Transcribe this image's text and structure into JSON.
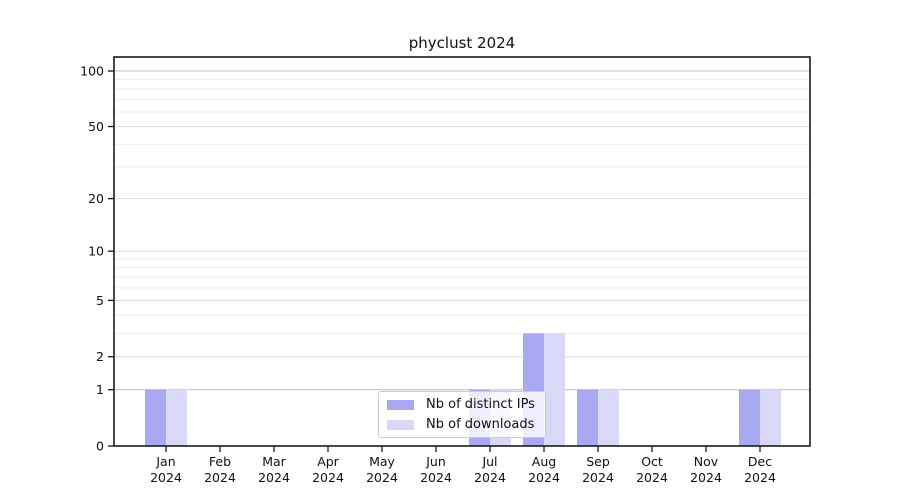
{
  "chart_data": {
    "type": "bar",
    "title": "phyclust 2024",
    "categories": [
      "Jan",
      "Feb",
      "Mar",
      "Apr",
      "May",
      "Jun",
      "Jul",
      "Aug",
      "Sep",
      "Oct",
      "Nov",
      "Dec"
    ],
    "year": "2024",
    "series": [
      {
        "name": "Nb of distinct IPs",
        "color": "#a9a9f2",
        "values": [
          1,
          0,
          0,
          0,
          0,
          0,
          1,
          3,
          1,
          0,
          0,
          1
        ]
      },
      {
        "name": "Nb of downloads",
        "color": "#d9d9f7",
        "values": [
          1,
          0,
          0,
          0,
          0,
          0,
          1,
          3,
          1,
          0,
          0,
          1
        ]
      }
    ],
    "xlabel": "",
    "ylabel": "",
    "yscale": "log1p",
    "ylim": [
      0,
      119
    ],
    "yticks": [
      0,
      1,
      2,
      5,
      10,
      20,
      50,
      100
    ],
    "yticks_emphasized": [
      1,
      100
    ],
    "yticks_minor": [
      3,
      4,
      6,
      7,
      8,
      9,
      30,
      40,
      60,
      70,
      80,
      90
    ],
    "grid": "on",
    "legend_position": "lower center",
    "grid_colors": {
      "emphasized": "#c6c6c6",
      "major": "#e0e0e0",
      "minor": "#eeeeee"
    },
    "axis_color": "#1a1a1a"
  }
}
